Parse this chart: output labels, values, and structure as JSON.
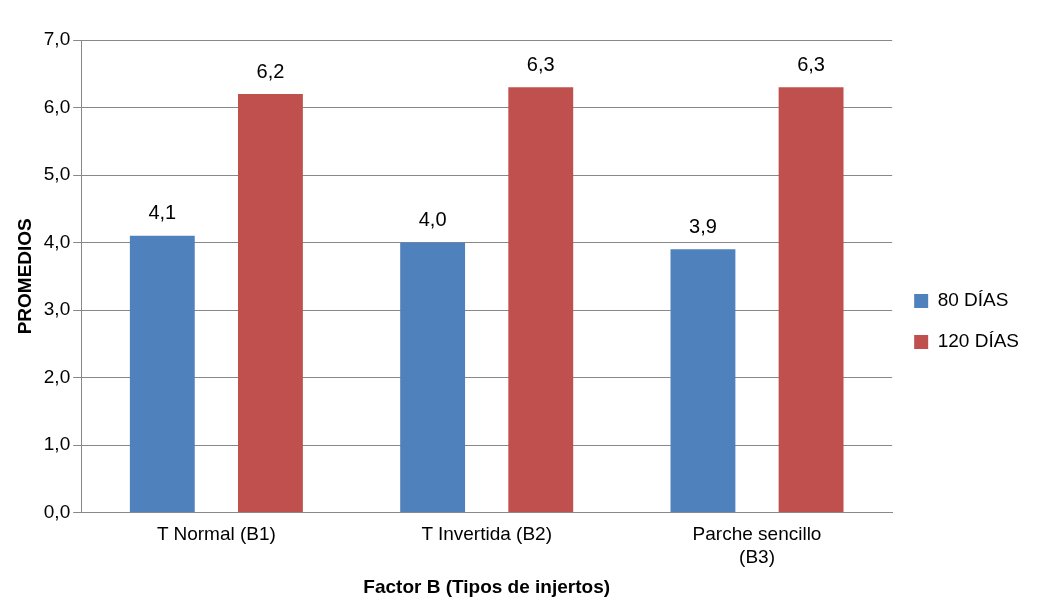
{
  "chart_data": {
    "type": "bar",
    "xlabel": "Factor B (Tipos de injertos)",
    "ylabel": "PROMEDIOS",
    "categories": [
      "T Normal (B1)",
      "T Invertida (B2)",
      "Parche sencillo (B3)"
    ],
    "series": [
      {
        "name": "80 DÍAS",
        "color": "#4f81bd",
        "values": [
          4.1,
          4.0,
          3.9
        ],
        "value_labels": [
          "4,1",
          "4,0",
          "3,9"
        ]
      },
      {
        "name": "120 DÍAS",
        "color": "#c0504d",
        "values": [
          6.2,
          6.3,
          6.3
        ],
        "value_labels": [
          "6,2",
          "6,3",
          "6,3"
        ]
      }
    ],
    "ylim": [
      0,
      7
    ],
    "yticks": [
      {
        "value": 0,
        "label": "0,0"
      },
      {
        "value": 1,
        "label": "1,0"
      },
      {
        "value": 2,
        "label": "2,0"
      },
      {
        "value": 3,
        "label": "3,0"
      },
      {
        "value": 4,
        "label": "4,0"
      },
      {
        "value": 5,
        "label": "5,0"
      },
      {
        "value": 6,
        "label": "6,0"
      },
      {
        "value": 7,
        "label": "7,0"
      }
    ],
    "grid": "y",
    "legend": "right"
  }
}
